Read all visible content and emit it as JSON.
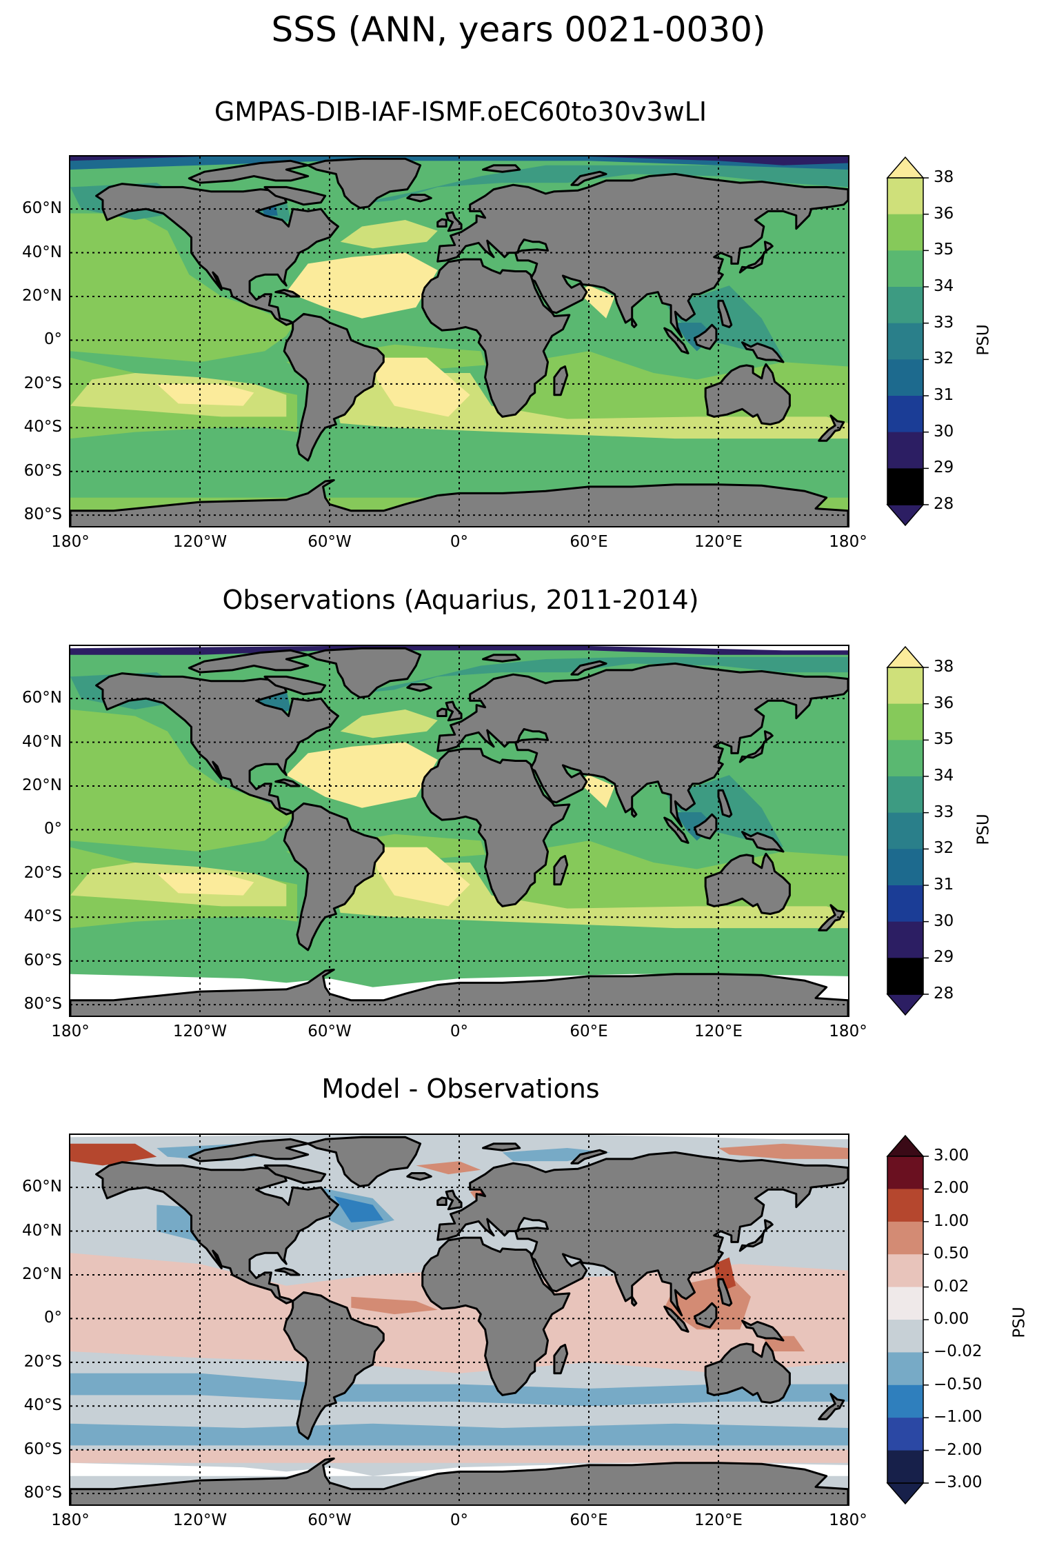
{
  "figure": {
    "suptitle": "SSS (ANN, years 0021-0030)"
  },
  "axes": {
    "lat_ticks": [
      "60°N",
      "40°N",
      "20°N",
      "0°",
      "20°S",
      "40°S",
      "60°S",
      "80°S"
    ],
    "lon_ticks": [
      "180°",
      "120°W",
      "60°W",
      "0°",
      "60°E",
      "120°E",
      "180°"
    ]
  },
  "colors": {
    "land": "#808080",
    "missing": "#ffffff",
    "coast": "#000000",
    "sss_levels": [
      "#2c1e63",
      "#1b3d96",
      "#1d6a8e",
      "#2a7f8a",
      "#3d9b82",
      "#5ab871",
      "#86c95a",
      "#cfe07a",
      "#fbeb9b"
    ],
    "diff_levels": [
      "#3a0a16",
      "#6a1020",
      "#b5472e",
      "#d38b74",
      "#e8c4bb",
      "#efe9e9",
      "#c7d0d6",
      "#77aac6",
      "#2f7fbd",
      "#2b48a4",
      "#17204a"
    ]
  },
  "panels": [
    {
      "id": "model",
      "title": "GMPAS-DIB-IAF-ISMF.oEC60to30v3wLI",
      "colorbar": {
        "label": "PSU",
        "ticks": [
          "38",
          "36",
          "35",
          "34",
          "33",
          "32",
          "31",
          "30",
          "29",
          "28"
        ],
        "extend": "both"
      }
    },
    {
      "id": "obs",
      "title": "Observations (Aquarius, 2011-2014)",
      "colorbar": {
        "label": "PSU",
        "ticks": [
          "38",
          "36",
          "35",
          "34",
          "33",
          "32",
          "31",
          "30",
          "29",
          "28"
        ],
        "extend": "both"
      }
    },
    {
      "id": "diff",
      "title": "Model - Observations",
      "colorbar": {
        "label": "PSU",
        "ticks": [
          "3.00",
          "2.00",
          "1.00",
          "0.50",
          "0.02",
          "0.00",
          "−0.02",
          "−0.50",
          "−1.00",
          "−2.00",
          "−3.00"
        ],
        "extend": "both"
      }
    }
  ]
}
